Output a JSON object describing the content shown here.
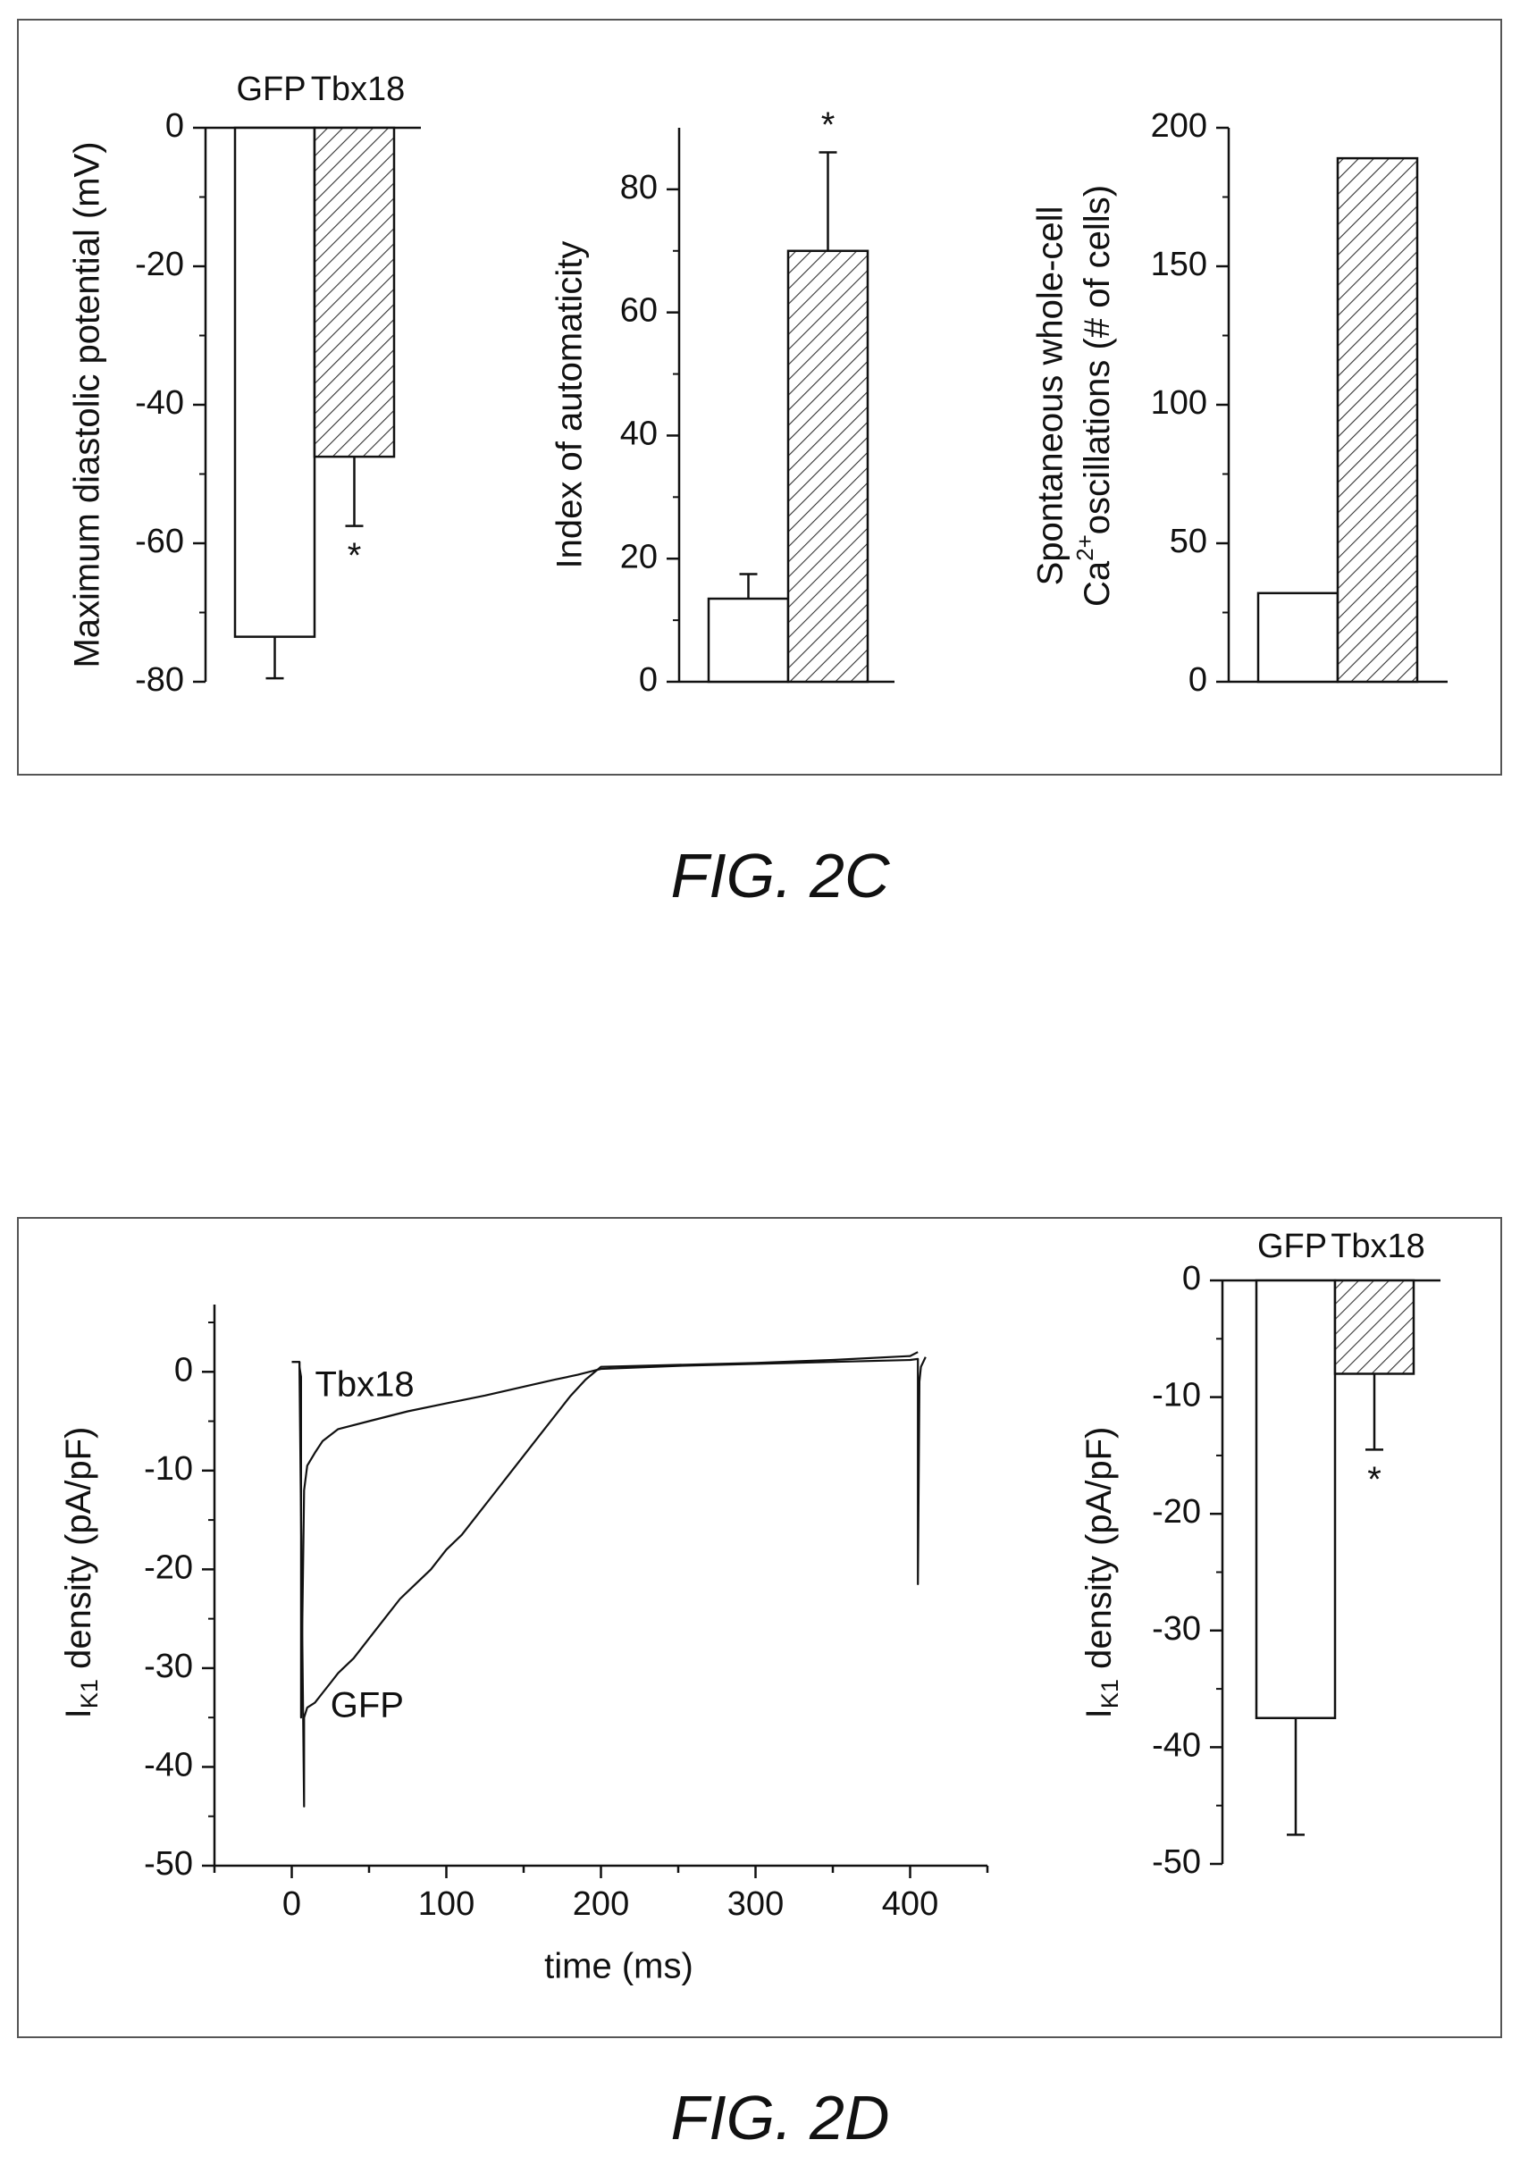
{
  "figures": {
    "fig2c_label": "FIG. 2C",
    "fig2d_label": "FIG. 2D"
  },
  "colors": {
    "ink": "#111111",
    "border": "#555555",
    "bar_fill_control": "#ffffff",
    "bar_hatch": "#333333"
  },
  "chart_data": [
    {
      "id": "mdp",
      "type": "bar",
      "figure": "FIG. 2C",
      "categories": [
        "GFP",
        "Tbx18"
      ],
      "category_labels_position": "top",
      "values": [
        -73.5,
        -47.5
      ],
      "errors": [
        6,
        10
      ],
      "annotations": [
        {
          "category": "Tbx18",
          "text": "*",
          "position": "below"
        }
      ],
      "ylabel": "Maximum diastolic potential (mV)",
      "ylim": [
        -80,
        0
      ],
      "yticks": [
        0,
        -20,
        -40,
        -60,
        -80
      ],
      "ytick_labels": [
        "0",
        "-20",
        "-40",
        "-60",
        "-80"
      ],
      "hatch": [
        false,
        true
      ]
    },
    {
      "id": "automaticity",
      "type": "bar",
      "figure": "FIG. 2C",
      "categories": [
        "GFP",
        "Tbx18"
      ],
      "values": [
        13.5,
        70
      ],
      "errors": [
        4,
        16
      ],
      "annotations": [
        {
          "category": "Tbx18",
          "text": "*",
          "position": "above"
        }
      ],
      "ylabel": "Index of automaticity",
      "ylim": [
        0,
        90
      ],
      "yticks": [
        0,
        20,
        40,
        60,
        80
      ],
      "ytick_labels": [
        "0",
        "20",
        "40",
        "60",
        "80"
      ],
      "hatch": [
        false,
        true
      ]
    },
    {
      "id": "ca_osc",
      "type": "bar",
      "figure": "FIG. 2C",
      "categories": [
        "GFP",
        "Tbx18"
      ],
      "values": [
        32,
        189
      ],
      "ylabel_lines": [
        "Spontaneous whole-cell",
        "Ca",
        "2+",
        "oscillations (# of cells)"
      ],
      "ylim": [
        0,
        200
      ],
      "yticks": [
        0,
        50,
        100,
        150,
        200
      ],
      "ytick_labels": [
        "0",
        "50",
        "100",
        "150",
        "200"
      ],
      "hatch": [
        false,
        true
      ]
    },
    {
      "id": "ik1_trace",
      "type": "line",
      "figure": "FIG. 2D",
      "xlabel": "time (ms)",
      "ylabel_main": "I",
      "ylabel_sub": "K1",
      "ylabel_rest": " density (pA/pF)",
      "xlim": [
        -50,
        450
      ],
      "ylim": [
        -50,
        5
      ],
      "xticks": [
        0,
        100,
        200,
        300,
        400
      ],
      "xtick_labels": [
        "0",
        "100",
        "200",
        "300",
        "400"
      ],
      "yticks": [
        0,
        -10,
        -20,
        -30,
        -40,
        -50
      ],
      "ytick_labels": [
        "0",
        "-10",
        "-20",
        "-30",
        "-40",
        "-50"
      ],
      "series": [
        {
          "name": "Tbx18",
          "x": [
            0,
            5,
            5,
            6,
            6,
            8,
            10,
            15,
            20,
            30,
            50,
            75,
            100,
            125,
            150,
            170,
            185,
            195,
            200,
            250,
            300,
            350,
            400,
            405,
            405,
            406,
            407,
            410
          ],
          "y": [
            1.0,
            1.0,
            0.5,
            -0.5,
            -35,
            -12,
            -9.5,
            -8.2,
            -7.0,
            -5.8,
            -5.0,
            -4.0,
            -3.2,
            -2.4,
            -1.5,
            -0.8,
            -0.3,
            0.1,
            0.3,
            0.6,
            0.8,
            1.0,
            1.2,
            1.3,
            -21.5,
            -1.0,
            0.5,
            1.5
          ]
        },
        {
          "name": "GFP",
          "x": [
            0,
            5,
            5,
            8,
            8,
            10,
            15,
            20,
            25,
            30,
            40,
            50,
            60,
            70,
            80,
            90,
            100,
            110,
            120,
            130,
            140,
            150,
            160,
            170,
            180,
            190,
            200,
            250,
            300,
            350,
            400,
            405
          ],
          "y": [
            1.0,
            1.0,
            0.5,
            -44,
            -35,
            -34,
            -33.5,
            -32.5,
            -31.5,
            -30.5,
            -29,
            -27,
            -25,
            -23,
            -21.5,
            -20,
            -18,
            -16.5,
            -14.5,
            -12.5,
            -10.5,
            -8.5,
            -6.5,
            -4.5,
            -2.5,
            -0.8,
            0.5,
            0.7,
            0.9,
            1.2,
            1.6,
            2.0
          ]
        }
      ],
      "annotations": [
        {
          "text": "Tbx18",
          "x": 15,
          "y": -1.5
        },
        {
          "text": "GFP",
          "x": 25,
          "y": -34
        }
      ]
    },
    {
      "id": "ik1_bar",
      "type": "bar",
      "figure": "FIG. 2D",
      "categories": [
        "GFP",
        "Tbx18"
      ],
      "category_labels_position": "top",
      "values": [
        -37.5,
        -8
      ],
      "errors": [
        10,
        6.5
      ],
      "annotations": [
        {
          "category": "Tbx18",
          "text": "*",
          "position": "below"
        }
      ],
      "ylabel_main": "I",
      "ylabel_sub": "K1",
      "ylabel_rest": " density (pA/pF)",
      "ylim": [
        -50,
        0
      ],
      "yticks": [
        0,
        -10,
        -20,
        -30,
        -40,
        -50
      ],
      "ytick_labels": [
        "0",
        "-10",
        "-20",
        "-30",
        "-40",
        "-50"
      ],
      "hatch": [
        false,
        true
      ]
    }
  ]
}
